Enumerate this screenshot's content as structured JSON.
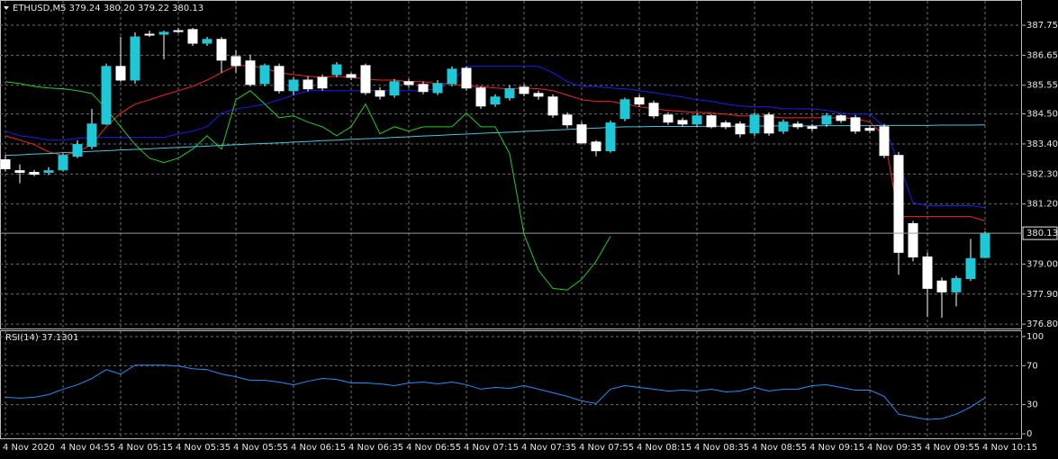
{
  "chart_data": [
    {
      "type": "candlestick",
      "title": "ETHUSD,M5  379.24 380.20 379.22 380.13",
      "categories": [
        "4 Nov 2020",
        null,
        null,
        null,
        "4 Nov 04:55",
        null,
        null,
        null,
        "4 Nov 05:15",
        null,
        null,
        null,
        "4 Nov 05:35",
        null,
        null,
        null,
        "4 Nov 05:55",
        null,
        null,
        null,
        "4 Nov 06:15",
        null,
        null,
        null,
        "4 Nov 06:35",
        null,
        null,
        null,
        "4 Nov 06:55",
        null,
        null,
        null,
        "4 Nov 07:15",
        null,
        null,
        null,
        "4 Nov 07:35",
        null,
        null,
        null,
        "4 Nov 07:55",
        null,
        null,
        null,
        "4 Nov 08:15",
        null,
        null,
        null,
        "4 Nov 08:35",
        null,
        null,
        null,
        "4 Nov 08:55",
        null,
        null,
        null,
        "4 Nov 09:15",
        null,
        null,
        null,
        "4 Nov 09:35",
        null,
        null,
        null,
        "4 Nov 09:55",
        null,
        null,
        null,
        "4 Nov 10:15"
      ],
      "open": [
        382.82,
        382.42,
        382.36,
        382.36,
        382.45,
        382.95,
        383.31,
        384.13,
        386.24,
        385.74,
        387.42,
        387.42,
        387.55,
        387.59,
        387.09,
        387.23,
        386.6,
        386.44,
        385.61,
        386.24,
        385.35,
        385.74,
        385.84,
        385.94,
        385.94,
        386.27,
        385.35,
        385.19,
        385.68,
        385.58,
        385.28,
        385.61,
        386.17,
        385.45,
        384.86,
        385.09,
        385.48,
        385.25,
        385.12,
        384.46,
        384.1,
        383.47,
        383.15,
        384.33,
        385.09,
        384.89,
        384.46,
        384.26,
        384.13,
        384.43,
        384.17,
        384.13,
        383.8,
        384.46,
        383.87,
        384.13,
        384.03,
        384.13,
        384.43,
        384.36,
        383.97,
        384.03,
        382.98,
        380.48,
        379.26,
        378.38,
        377.98,
        378.47,
        379.24
      ],
      "high": [
        382.98,
        382.65,
        382.45,
        382.55,
        383.05,
        383.54,
        384.69,
        386.34,
        387.32,
        387.49,
        387.55,
        387.55,
        387.65,
        387.65,
        387.32,
        387.32,
        386.83,
        386.67,
        386.34,
        386.34,
        385.84,
        385.88,
        385.94,
        386.4,
        386.01,
        386.34,
        385.48,
        385.78,
        385.78,
        385.68,
        385.74,
        386.24,
        386.24,
        385.51,
        385.22,
        385.55,
        385.58,
        385.35,
        385.22,
        384.56,
        384.2,
        383.54,
        384.26,
        385.09,
        385.19,
        384.99,
        384.56,
        384.36,
        384.53,
        384.49,
        384.26,
        384.23,
        384.56,
        384.56,
        384.3,
        384.23,
        384.13,
        384.53,
        384.49,
        384.46,
        384.07,
        384.13,
        383.11,
        380.58,
        379.43,
        378.51,
        378.57,
        379.92,
        380.2
      ],
      "low": [
        382.39,
        381.96,
        382.22,
        382.26,
        382.39,
        382.88,
        383.21,
        384.1,
        385.68,
        385.61,
        387.32,
        386.5,
        387.46,
        386.99,
        386.99,
        386.01,
        386.01,
        385.51,
        385.51,
        385.25,
        385.19,
        385.32,
        385.35,
        385.84,
        385.74,
        385.19,
        385.02,
        385.09,
        385.48,
        385.22,
        385.19,
        385.51,
        385.35,
        384.69,
        384.76,
        384.99,
        385.15,
        385.02,
        384.36,
        383.97,
        383.38,
        382.95,
        383.08,
        384.23,
        384.76,
        384.33,
        384.1,
        384.03,
        384.03,
        383.97,
        383.94,
        383.64,
        383.7,
        383.7,
        383.77,
        383.94,
        383.87,
        384.03,
        384.17,
        383.77,
        383.8,
        382.88,
        378.61,
        379.1,
        377.06,
        377.03,
        377.45,
        378.38,
        379.22
      ],
      "close": [
        382.49,
        382.36,
        382.29,
        382.42,
        382.98,
        383.38,
        384.13,
        386.24,
        385.74,
        387.32,
        387.39,
        387.49,
        387.52,
        387.09,
        387.23,
        386.47,
        386.27,
        385.58,
        386.27,
        385.35,
        385.74,
        385.42,
        385.45,
        386.3,
        385.84,
        385.28,
        385.15,
        385.68,
        385.58,
        385.32,
        385.61,
        386.14,
        385.45,
        384.79,
        385.12,
        385.42,
        385.25,
        385.15,
        384.46,
        384.1,
        383.44,
        383.15,
        384.17,
        385.02,
        384.86,
        384.43,
        384.2,
        384.13,
        384.43,
        384.03,
        384.03,
        383.77,
        384.46,
        383.8,
        384.2,
        384.03,
        383.97,
        384.43,
        384.26,
        383.87,
        383.9,
        382.98,
        379.43,
        379.26,
        378.11,
        377.98,
        378.47,
        379.2,
        380.13
      ],
      "up_color": "#1ec8d6",
      "down_color": "#ffffff",
      "series": [
        {
          "color": "#ff2020",
          "values": [
            383.7,
            383.54,
            383.38,
            383.11,
            382.98,
            383.11,
            383.38,
            384.03,
            384.53,
            384.86,
            385.02,
            385.19,
            385.35,
            385.51,
            385.74,
            386.01,
            386.27,
            386.27,
            386.17,
            386.01,
            385.94,
            385.88,
            385.84,
            385.88,
            385.84,
            385.78,
            385.74,
            385.74,
            385.68,
            385.68,
            385.61,
            385.61,
            385.51,
            385.51,
            385.45,
            385.42,
            385.45,
            385.42,
            385.35,
            385.19,
            385.02,
            384.96,
            384.96,
            384.86,
            384.76,
            384.69,
            384.63,
            384.59,
            384.56,
            384.53,
            384.49,
            384.43,
            384.43,
            384.4,
            384.36,
            384.36,
            384.36,
            384.36,
            384.36,
            384.33,
            384.2,
            383.7,
            380.74,
            380.74,
            380.74,
            380.74,
            380.74,
            380.74,
            380.58
          ]
        },
        {
          "color": "#1a1aff",
          "values": [
            383.87,
            383.7,
            383.64,
            383.54,
            383.54,
            383.61,
            383.64,
            383.64,
            383.64,
            383.64,
            383.64,
            383.64,
            383.77,
            383.87,
            384.03,
            384.53,
            384.69,
            384.76,
            384.86,
            385.02,
            385.19,
            385.35,
            385.35,
            385.35,
            385.35,
            385.35,
            385.35,
            385.35,
            385.35,
            385.35,
            385.42,
            385.68,
            386.24,
            386.24,
            386.24,
            386.24,
            386.24,
            386.24,
            386.01,
            385.68,
            385.51,
            385.51,
            385.45,
            385.42,
            385.35,
            385.28,
            385.19,
            385.12,
            385.02,
            384.96,
            384.86,
            384.79,
            384.76,
            384.76,
            384.69,
            384.69,
            384.69,
            384.63,
            384.53,
            384.49,
            384.49,
            384.03,
            382.72,
            381.24,
            381.14,
            381.14,
            381.14,
            381.14,
            381.07
          ]
        },
        {
          "color": "#1ed01e",
          "values": [
            385.68,
            385.61,
            385.51,
            385.45,
            385.42,
            385.35,
            385.25,
            384.69,
            384.03,
            383.38,
            382.88,
            382.72,
            382.88,
            383.21,
            383.7,
            383.21,
            385.02,
            385.35,
            384.86,
            384.36,
            384.43,
            384.2,
            384.03,
            383.7,
            384.03,
            384.86,
            383.77,
            384.03,
            383.87,
            384.03,
            384.03,
            384.03,
            384.53,
            384.03,
            384.03,
            383.05,
            380.09,
            378.77,
            378.11,
            378.05,
            378.44,
            379.1,
            380.02,
            null,
            null,
            null,
            null,
            null,
            null,
            null,
            null,
            null,
            null,
            null,
            null,
            null,
            null,
            null,
            null,
            null,
            null,
            null,
            null,
            null,
            null,
            null,
            null,
            null,
            null
          ]
        },
        {
          "color": "#3fc6e0",
          "values": [
            382.98,
            383.0,
            383.03,
            383.05,
            383.08,
            383.1,
            383.13,
            383.15,
            383.18,
            383.2,
            383.22,
            383.25,
            383.27,
            383.3,
            383.32,
            383.35,
            383.37,
            383.4,
            383.42,
            383.44,
            383.47,
            383.49,
            383.52,
            383.54,
            383.57,
            383.59,
            383.61,
            383.64,
            383.66,
            383.69,
            383.71,
            383.74,
            383.76,
            383.79,
            383.81,
            383.83,
            383.86,
            383.88,
            383.91,
            383.93,
            383.96,
            383.98,
            384.01,
            384.03,
            384.03,
            384.04,
            384.04,
            384.04,
            384.04,
            384.05,
            384.05,
            384.05,
            384.05,
            384.06,
            384.06,
            384.06,
            384.06,
            384.07,
            384.07,
            384.07,
            384.07,
            384.08,
            384.08,
            384.08,
            384.08,
            384.09,
            384.09,
            384.09,
            384.1
          ]
        }
      ],
      "current_price": 380.13,
      "ylim": [
        376.64,
        388.64
      ],
      "yticks": [
        387.75,
        386.65,
        385.55,
        {
          "value": 384.5,
          "label": "384.50"
        },
        {
          "value": 383.4,
          "label": "383.40"
        },
        {
          "value": 382.3,
          "label": "382.30"
        },
        {
          "value": 381.2,
          "label": "381.20"
        },
        {
          "value": 379,
          "label": "379.00"
        },
        {
          "value": 377.9,
          "label": "377.90"
        },
        {
          "value": 376.8,
          "label": "376.80"
        }
      ],
      "grid": true
    },
    {
      "type": "line",
      "title": "RSI(14) 37.1301",
      "values": [
        37.6,
        36.7,
        37.6,
        40.3,
        45.9,
        50.4,
        56.9,
        66.0,
        61.4,
        70.6,
        70.6,
        70.6,
        69.7,
        66.9,
        66.0,
        61.4,
        58.7,
        55.0,
        55.0,
        53.2,
        50.4,
        54.1,
        56.9,
        55.9,
        52.3,
        52.3,
        51.4,
        49.5,
        52.3,
        53.2,
        51.4,
        53.2,
        50.4,
        45.9,
        47.7,
        46.8,
        49.5,
        45.9,
        42.2,
        38.5,
        33.9,
        31.2,
        45.9,
        49.5,
        47.7,
        45.9,
        44.0,
        44.9,
        44.0,
        45.9,
        43.1,
        44.0,
        47.7,
        44.0,
        45.9,
        45.9,
        49.5,
        50.4,
        47.7,
        44.9,
        44.9,
        38.5,
        20.2,
        17.4,
        14.7,
        15.6,
        20.2,
        27.5,
        37.13
      ],
      "color": "#1e90ff",
      "ylim": [
        -4.6,
        105.5
      ],
      "yticks": [
        0,
        30,
        70,
        100
      ],
      "grid": true
    }
  ]
}
